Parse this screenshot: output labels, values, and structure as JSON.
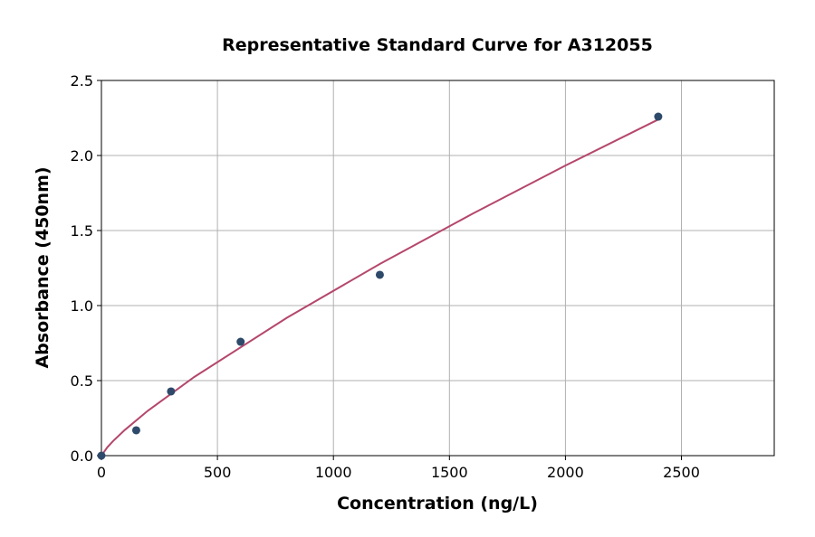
{
  "chart_data": {
    "type": "scatter",
    "title": "Representative Standard Curve for A312055",
    "xlabel": "Concentration (ng/L)",
    "ylabel": "Absorbance (450nm)",
    "xlim": [
      0,
      2900
    ],
    "ylim": [
      0,
      2.5
    ],
    "xticks": [
      0,
      500,
      1000,
      1500,
      2000,
      2500
    ],
    "yticks": [
      0.0,
      0.5,
      1.0,
      1.5,
      2.0,
      2.5
    ],
    "xtick_labels": [
      "0",
      "500",
      "1000",
      "1500",
      "2000",
      "2500"
    ],
    "ytick_labels": [
      "0.0",
      "0.5",
      "1.0",
      "1.5",
      "2.0",
      "2.5"
    ],
    "grid": true,
    "points": {
      "x": [
        0,
        150,
        300,
        600,
        1200,
        2400
      ],
      "y": [
        0.0,
        0.169,
        0.428,
        0.759,
        1.205,
        2.259
      ],
      "color": "#2e4a6b"
    },
    "fit_curve": {
      "x": [
        0,
        25,
        50,
        100,
        200,
        400,
        800,
        1200,
        1600,
        2000,
        2400
      ],
      "y": [
        0,
        0.055,
        0.097,
        0.17,
        0.299,
        0.524,
        0.919,
        1.277,
        1.612,
        1.933,
        2.24
      ],
      "color": "#b5476b"
    }
  }
}
